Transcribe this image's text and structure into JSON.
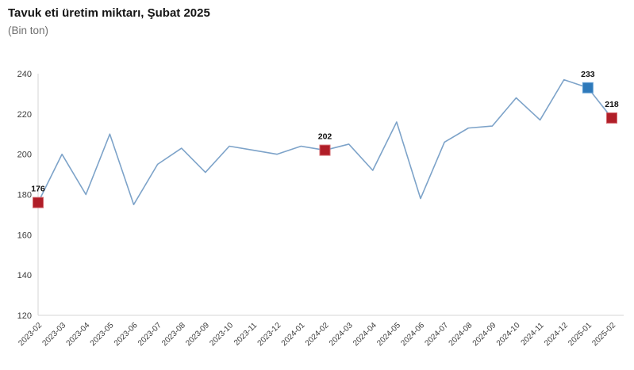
{
  "header": {
    "title": "Tavuk eti üretim miktarı, Şubat 2025",
    "subtitle": "(Bin ton)"
  },
  "chart_data": {
    "type": "line",
    "title": "Tavuk eti üretim miktarı, Şubat 2025",
    "subtitle": "(Bin ton)",
    "unit": "Bin ton",
    "categories": [
      "2023-02",
      "2023-03",
      "2023-04",
      "2023-05",
      "2023-06",
      "2023-07",
      "2023-08",
      "2023-09",
      "2023-10",
      "2023-11",
      "2023-12",
      "2024-01",
      "2024-02",
      "2024-03",
      "2024-04",
      "2024-05",
      "2024-06",
      "2024-07",
      "2024-08",
      "2024-09",
      "2024-10",
      "2024-11",
      "2024-12",
      "2025-01",
      "2025-02"
    ],
    "values": [
      176,
      200,
      180,
      210,
      175,
      195,
      203,
      191,
      204,
      202,
      200,
      204,
      202,
      205,
      192,
      216,
      178,
      206,
      213,
      214,
      228,
      217,
      237,
      233,
      218
    ],
    "ylim": [
      120,
      240
    ],
    "yticks": [
      240,
      220,
      200,
      180,
      160,
      140,
      120
    ],
    "grid": false,
    "legend": "none",
    "line_color": "#7da3c9",
    "axis_color": "#d6d6d6",
    "tick_label_color": "#3c3c3c",
    "marked_points": [
      {
        "category": "2023-02",
        "index": 0,
        "value": 176,
        "label": "176",
        "color": "#b01e28",
        "border": "#d4686e"
      },
      {
        "category": "2024-02",
        "index": 12,
        "value": 202,
        "label": "202",
        "color": "#b01e28",
        "border": "#d4686e"
      },
      {
        "category": "2025-01",
        "index": 23,
        "value": 233,
        "label": "233",
        "color": "#2e79ba",
        "border": "#6aa5d8"
      },
      {
        "category": "2025-02",
        "index": 24,
        "value": 218,
        "label": "218",
        "color": "#b01e28",
        "border": "#d4686e"
      }
    ]
  }
}
